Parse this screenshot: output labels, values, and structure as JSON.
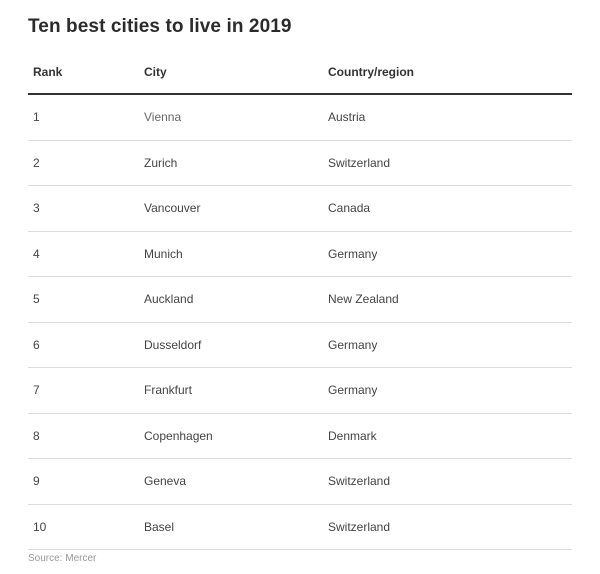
{
  "title": "Ten best cities to live in 2019",
  "table": {
    "headers": [
      "Rank",
      "City",
      "Country/region"
    ],
    "rows": [
      [
        "1",
        "Vienna",
        "Austria"
      ],
      [
        "2",
        "Zurich",
        "Switzerland"
      ],
      [
        "3",
        "Vancouver",
        "Canada"
      ],
      [
        "4",
        "Munich",
        "Germany"
      ],
      [
        "5",
        "Auckland",
        "New Zealand"
      ],
      [
        "6",
        "Dusseldorf",
        "Germany"
      ],
      [
        "7",
        "Frankfurt",
        "Germany"
      ],
      [
        "8",
        "Copenhagen",
        "Denmark"
      ],
      [
        "9",
        "Geneva",
        "Switzerland"
      ],
      [
        "10",
        "Basel",
        "Switzerland"
      ]
    ]
  },
  "source": "Source: Mercer"
}
